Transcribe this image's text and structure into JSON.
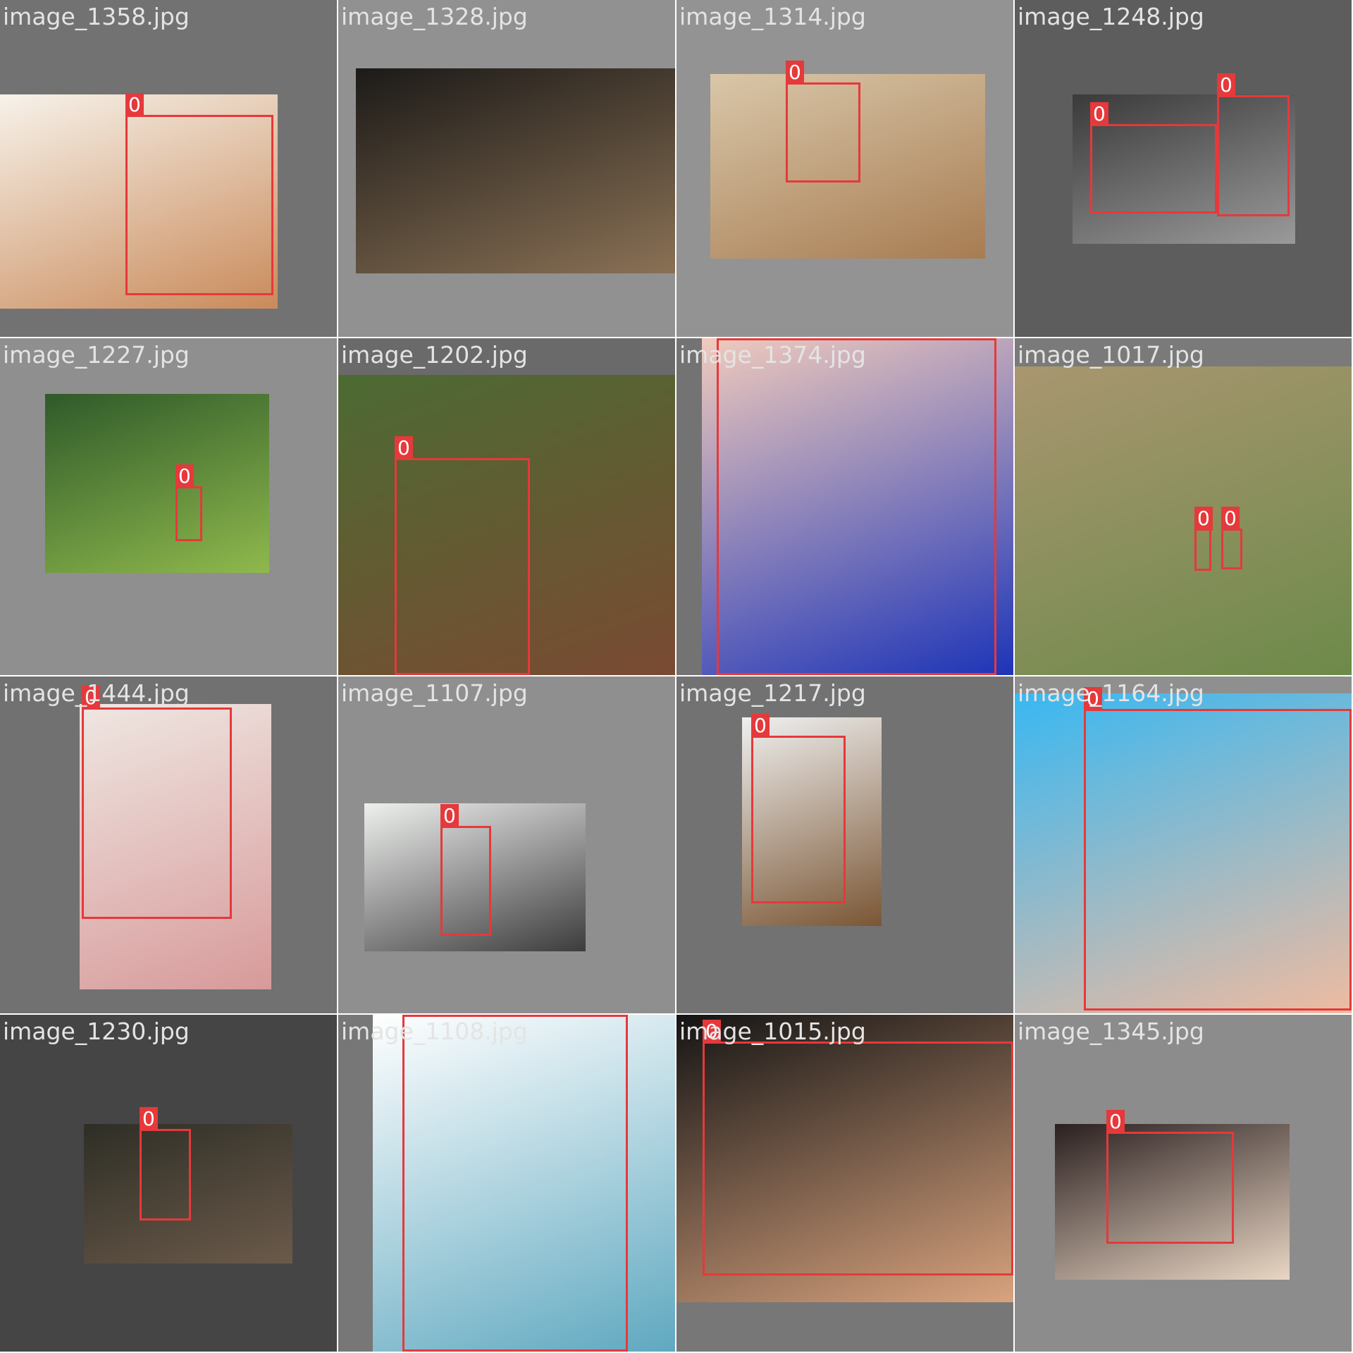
{
  "tiles": [
    {
      "file": "image_1358.jpg",
      "photo": {
        "kind": "child-face-sunlit",
        "colors": [
          "#f7f2ea",
          "#c98a5a"
        ]
      },
      "detections": [
        {
          "label": "0"
        }
      ]
    },
    {
      "file": "image_1328.jpg",
      "photo": {
        "kind": "memorial-plaque",
        "colors": [
          "#1c1a18",
          "#8a7155"
        ]
      },
      "detections": []
    },
    {
      "file": "image_1314.jpg",
      "photo": {
        "kind": "man-coat-street",
        "colors": [
          "#d9c7a9",
          "#a77c52"
        ]
      },
      "detections": [
        {
          "label": "0"
        }
      ]
    },
    {
      "file": "image_1248.jpg",
      "photo": {
        "kind": "bw-people-lying",
        "colors": [
          "#3a3a3a",
          "#9a9a9a"
        ]
      },
      "detections": [
        {
          "label": "0"
        },
        {
          "label": "0"
        }
      ]
    },
    {
      "file": "image_1227.jpg",
      "photo": {
        "kind": "runner-track",
        "colors": [
          "#2f5a2a",
          "#8fb94c"
        ]
      },
      "detections": [
        {
          "label": "0"
        }
      ]
    },
    {
      "file": "image_1202.jpg",
      "photo": {
        "kind": "woman-disguise-glasses",
        "colors": [
          "#4c6b33",
          "#7a4a32"
        ]
      },
      "detections": [
        {
          "label": "0"
        }
      ]
    },
    {
      "file": "image_1374.jpg",
      "photo": {
        "kind": "dancer-blue-veil",
        "colors": [
          "#f1cbbc",
          "#1d34b8"
        ]
      },
      "detections": [
        {
          "label": "0"
        }
      ]
    },
    {
      "file": "image_1017.jpg",
      "photo": {
        "kind": "mud-volcano-landscape",
        "colors": [
          "#a99670",
          "#6d8a4a"
        ]
      },
      "detections": [
        {
          "label": "0"
        },
        {
          "label": "0"
        }
      ]
    },
    {
      "file": "image_1444.jpg",
      "photo": {
        "kind": "woman-pink-feathers",
        "colors": [
          "#efe7e2",
          "#d79a9a"
        ]
      },
      "detections": [
        {
          "label": "0"
        }
      ]
    },
    {
      "file": "image_1107.jpg",
      "photo": {
        "kind": "man-by-window",
        "colors": [
          "#eef0ee",
          "#3c3c3c"
        ]
      },
      "detections": [
        {
          "label": "0"
        }
      ]
    },
    {
      "file": "image_1217.jpg",
      "photo": {
        "kind": "girl-sunglasses",
        "colors": [
          "#f0f0f0",
          "#7a5634"
        ]
      },
      "detections": [
        {
          "label": "0"
        }
      ]
    },
    {
      "file": "image_1164.jpg",
      "photo": {
        "kind": "baby-in-pool",
        "colors": [
          "#38b8f2",
          "#efbba0"
        ]
      },
      "detections": [
        {
          "label": "0"
        }
      ]
    },
    {
      "file": "image_1230.jpg",
      "photo": {
        "kind": "woman-on-rocks",
        "colors": [
          "#2e2e26",
          "#6b5a4a"
        ]
      },
      "detections": [
        {
          "label": "0"
        }
      ]
    },
    {
      "file": "image_1108.jpg",
      "photo": {
        "kind": "woman-denim-skirt",
        "colors": [
          "#ffffff",
          "#5fa8c0"
        ]
      },
      "detections": [
        {
          "label": "0"
        }
      ]
    },
    {
      "file": "image_1015.jpg",
      "photo": {
        "kind": "woman-lying-smiling",
        "colors": [
          "#141414",
          "#d9a37e"
        ]
      },
      "detections": [
        {
          "label": "0"
        }
      ]
    },
    {
      "file": "image_1345.jpg",
      "photo": {
        "kind": "woman-looking-down",
        "colors": [
          "#2b2020",
          "#e9d6c4"
        ]
      },
      "detections": [
        {
          "label": "0"
        }
      ]
    }
  ]
}
